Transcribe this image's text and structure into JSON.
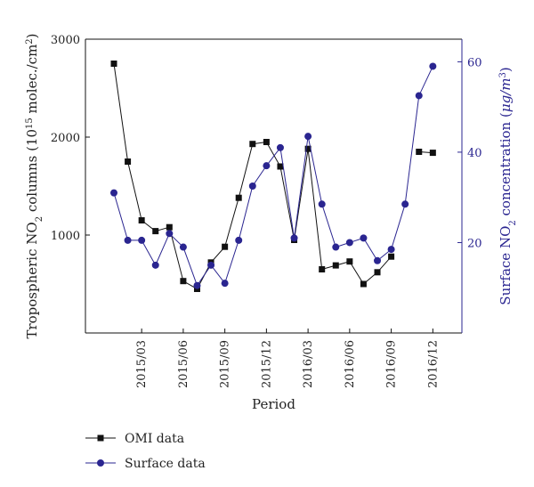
{
  "chart_data": {
    "type": "line",
    "xlabel": "Period",
    "x_ticks": [
      "2015/03",
      "2015/06",
      "2015/09",
      "2015/12",
      "2016/03",
      "2016/06",
      "2016/09",
      "2016/12"
    ],
    "x": [
      "2015/01",
      "2015/02",
      "2015/03",
      "2015/04",
      "2015/05",
      "2015/06",
      "2015/07",
      "2015/08",
      "2015/09",
      "2015/10",
      "2015/11",
      "2015/12",
      "2016/01",
      "2016/02",
      "2016/03",
      "2016/04",
      "2016/05",
      "2016/06",
      "2016/07",
      "2016/08",
      "2016/09",
      "2016/10",
      "2016/11",
      "2016/12"
    ],
    "y_left": {
      "label_parts": [
        "Tropospheric NO",
        "2",
        " columns (10",
        "15",
        " molec./cm",
        "2",
        ")"
      ],
      "ylim": [
        0,
        3000
      ],
      "ticks": [
        1000,
        2000,
        3000
      ]
    },
    "y_right": {
      "label_parts": [
        "Surface NO",
        "2",
        " concentration (",
        "μg/m",
        "3",
        ")"
      ],
      "ylim": [
        0,
        65
      ],
      "ticks": [
        20,
        40,
        60
      ]
    },
    "series": [
      {
        "name": "OMI data",
        "axis": "left",
        "color": "#111111",
        "marker": "square",
        "segments": [
          [
            2750,
            1750,
            1150,
            1040,
            1080,
            530,
            450,
            720,
            880,
            1380,
            1930,
            1950,
            1700,
            950,
            1880,
            650,
            690,
            730,
            500,
            620,
            780
          ],
          [
            1850,
            1840
          ]
        ]
      },
      {
        "name": "Surface data",
        "axis": "right",
        "color": "#2a2590",
        "marker": "circle",
        "values": [
          31,
          20.5,
          20.5,
          15,
          22,
          19,
          10.5,
          15,
          11,
          20.5,
          32.5,
          37,
          41,
          21,
          43.5,
          28.5,
          19,
          20,
          21,
          16,
          18.5,
          28.5,
          52.5,
          59
        ]
      }
    ]
  }
}
